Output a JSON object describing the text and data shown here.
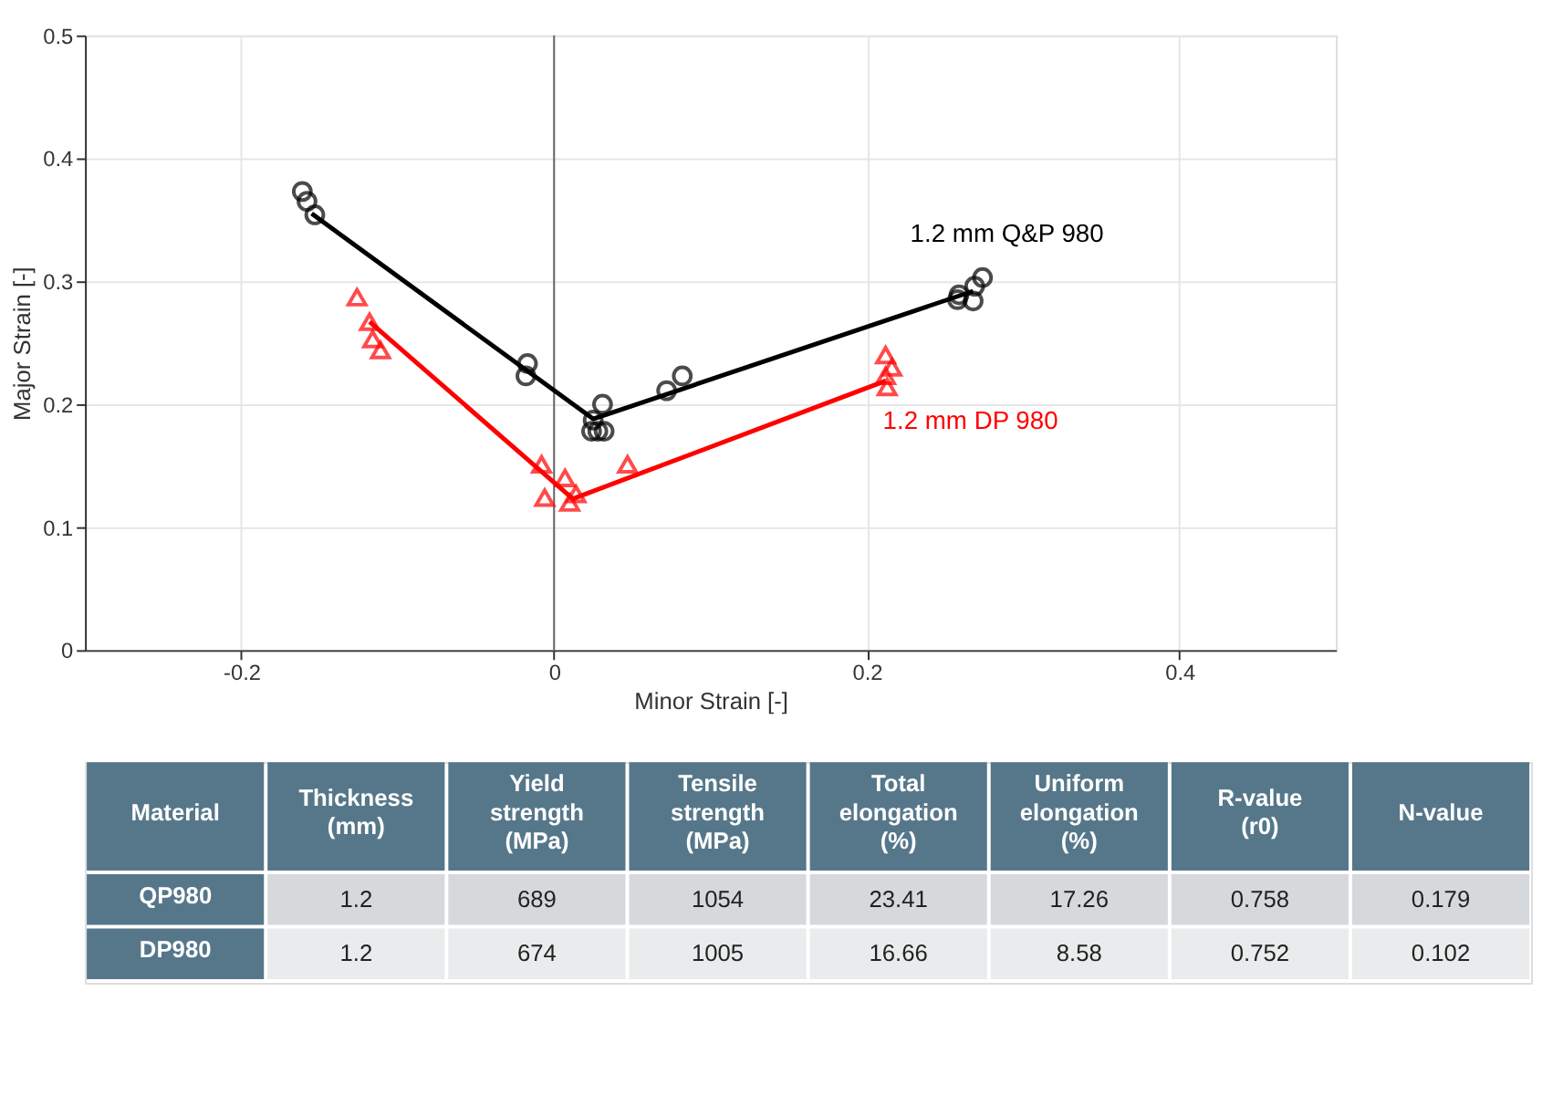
{
  "chart_data": [
    {
      "type": "scatter",
      "xlabel": "Minor Strain [-]",
      "ylabel": "Major Strain [-]",
      "xlim": [
        -0.3,
        0.5
      ],
      "xticks": [
        -0.2,
        0,
        0.2,
        0.4
      ],
      "ylim": [
        0,
        0.5
      ],
      "yticks": [
        0,
        0.1,
        0.2,
        0.3,
        0.4,
        0.5
      ],
      "grid": true,
      "ref_lines": [
        {
          "axis": "x",
          "value": 0,
          "color": "#666666",
          "line_style": "solid"
        }
      ],
      "series": [
        {
          "name": "1.2 mm Q&P 980",
          "color": "#000000",
          "marker": "circle",
          "x": [
            -0.161,
            -0.158,
            -0.153,
            -0.017,
            -0.018,
            0.024,
            0.028,
            0.032,
            0.025,
            0.031,
            0.072,
            0.082,
            0.258,
            0.259,
            0.268,
            0.269,
            0.274
          ],
          "values": [
            0.373,
            0.365,
            0.354,
            0.233,
            0.223,
            0.178,
            0.178,
            0.178,
            0.187,
            0.2,
            0.211,
            0.223,
            0.285,
            0.289,
            0.284,
            0.296,
            0.303
          ]
        },
        {
          "name": "1.2 mm DP 980",
          "color": "#ff0000",
          "marker": "triangle",
          "x": [
            -0.126,
            -0.118,
            -0.116,
            -0.111,
            -0.008,
            -0.006,
            0.007,
            0.01,
            0.014,
            0.047,
            0.212,
            0.216,
            0.212,
            0.213
          ],
          "values": [
            0.287,
            0.267,
            0.253,
            0.244,
            0.151,
            0.124,
            0.14,
            0.12,
            0.127,
            0.151,
            0.24,
            0.23,
            0.223,
            0.214
          ]
        },
        {
          "type": "line",
          "color": "#000000",
          "x": [
            -0.155,
            0.025,
            0.268
          ],
          "values": [
            0.355,
            0.188,
            0.292
          ]
        },
        {
          "type": "line",
          "color": "#ff0000",
          "x": [
            -0.118,
            0.012,
            0.212
          ],
          "values": [
            0.267,
            0.123,
            0.219
          ]
        }
      ]
    },
    {
      "type": "other",
      "categories": [
        "Material",
        "Thickness\n(mm)",
        "Yield\nstrength\n(MPa)",
        "Tensile\nstrength\n(MPa)",
        "Total\nelongation\n(%)",
        "Uniform\nelongation\n(%)",
        "R-value\n(r0)",
        "N-value"
      ],
      "annotations": [
        "QP980",
        "1.2",
        "689",
        "1054",
        "23.41",
        "17.26",
        "0.758",
        "0.179",
        "DP980",
        "1.2",
        "674",
        "1005",
        "16.66",
        "8.58",
        "0.752",
        "0.102"
      ]
    }
  ]
}
